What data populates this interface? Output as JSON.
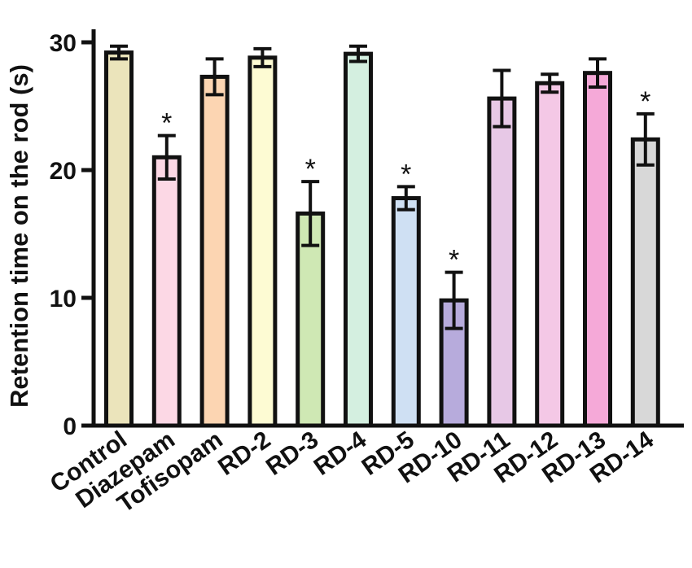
{
  "chart_data": {
    "type": "bar",
    "title": "",
    "xlabel": "",
    "ylabel": "Retention time on the rod (s)",
    "ylim": [
      0,
      30
    ],
    "yticks": [
      0,
      10,
      20,
      30
    ],
    "ytick_labels": [
      "0",
      "10",
      "20",
      "30"
    ],
    "grid": false,
    "legend": "none",
    "categories": [
      "Control",
      "Diazepam",
      "Tofisopam",
      "RD-2",
      "RD-3",
      "RD-4",
      "RD-5",
      "RD-10",
      "RD-11",
      "RD-12",
      "RD-13",
      "RD-14"
    ],
    "values": [
      29.2,
      21.0,
      27.3,
      28.8,
      16.6,
      29.1,
      17.8,
      9.8,
      25.6,
      26.8,
      27.6,
      22.4
    ],
    "errors": [
      0.5,
      1.7,
      1.4,
      0.7,
      2.5,
      0.6,
      0.9,
      2.2,
      2.2,
      0.7,
      1.1,
      2.0
    ],
    "significance": [
      "",
      "*",
      "",
      "",
      "*",
      "",
      "*",
      "*",
      "",
      "",
      "",
      "*"
    ],
    "colors": [
      "#ebe4bb",
      "#fcd8e5",
      "#fcd5b2",
      "#fdfbd3",
      "#cfe8b4",
      "#d4efe0",
      "#cfe0f3",
      "#b7abdc",
      "#e7c8e6",
      "#f4c8e6",
      "#f5a9d8",
      "#d8d8d8"
    ]
  }
}
